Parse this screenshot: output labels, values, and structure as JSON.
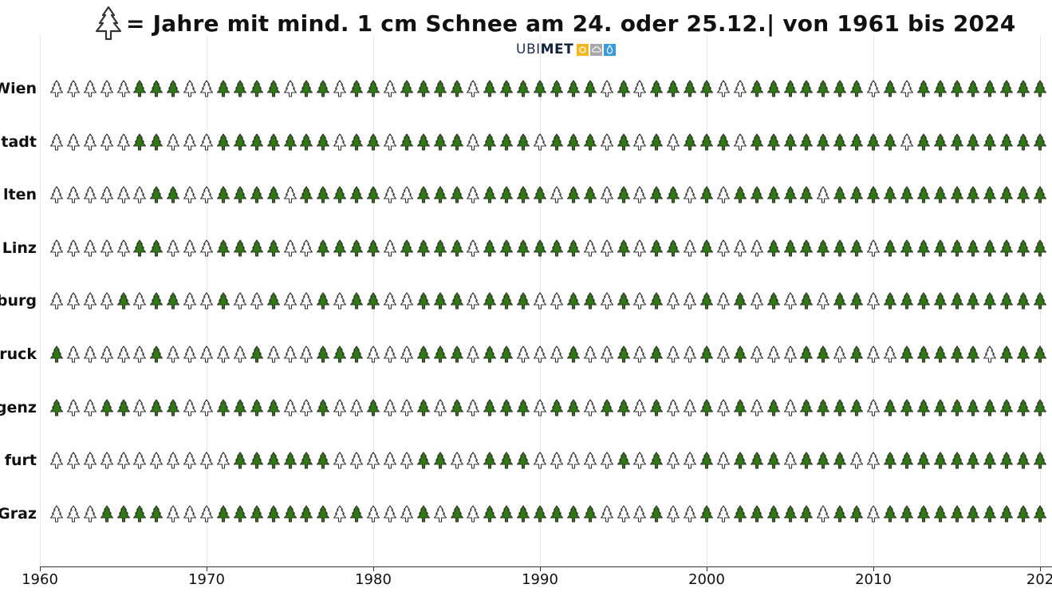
{
  "chart_data": {
    "type": "icon-grid",
    "title": "= Jahre mit mind. 1 cm Schnee am 24. oder 25.12.| von 1961 bis 2024",
    "legend": {
      "icon": "tree-outline-icon",
      "meaning": "Jahre mit mind. 1 cm Schnee am 24. oder 25.12."
    },
    "note": "F = filled green tree (white Christmas), O = outline tree; visible range 1961-2020 (image cropped right)",
    "xlabel": "",
    "ylabel": "",
    "xlim": [
      1960,
      2020
    ],
    "x_ticks": [
      "1960",
      "1970",
      "1980",
      "1990",
      "2000",
      "2010",
      "202"
    ],
    "x_tick_values": [
      1960,
      1970,
      1980,
      1990,
      2000,
      2010,
      2020
    ],
    "grid": "vertical",
    "years_start": 1961,
    "years_end_visible": 2020,
    "rows": [
      {
        "label": "Wien",
        "pattern": "OOOOOFFFOOFFFFOFFOFFOFFFFOFFFFFFFOFOFFFFOOFFFFFFFOFOFFFFFFFF"
      },
      {
        "label": "tadt",
        "pattern": "OOOOOFFOOOFFFFFFFOFFOFFFFOFFFOFFFOFOFOFFFOFFFFFFFFFOFFFFFFFF"
      },
      {
        "label": "lten",
        "pattern": "OOOOOOFFOOFFFFOFFFFFOOFFFOFFFFOFFOFOFFOFOFFFFFOFFFFFFFFFFFFF"
      },
      {
        "label": "Linz",
        "pattern": "OOOOOFFOOOFFFFOOFFFFOFFFFOFFFFFFOOFOFFOFOOOFFFFFFOFFFFFFFFFF"
      },
      {
        "label": "burg",
        "pattern": "OOOOFOFFOOFOOFOOFOFFOOFFFOFFFOOFFOFOFOOFOFOFOFOFFOFFFFFFFFFF"
      },
      {
        "label": "ruck",
        "pattern": "FOOOOOFOOOOOFOOOFFFOOOFFFOFFOOOFOOFOFOOFOFOOOFFOFOOFFFFFOFFF"
      },
      {
        "label": "genz",
        "pattern": "FOOFFOFFOOFFFFOOFOOFOOFOFOFFFOFFOFFOFOOFOFOFOFFFFOFFFFFFFFFF"
      },
      {
        "label": "furt",
        "pattern": "OOOOOOOOOOOFFFFFFOOOOOFFOOFFFOOOOOFOFOOFOFFFOFFFOOFFFFFFFFFF"
      },
      {
        "label": "Graz",
        "pattern": "OOOFFFFOOOFFFFFFFOFOOOFOFOFFFFFFFOOOFOOFOFFFFFOFFOFFFFFFFFFF"
      }
    ],
    "colors": {
      "filled": "#2e7a10",
      "outline_fill": "#ffffff",
      "stroke": "#333333"
    }
  },
  "title": {
    "text": "= Jahre mit mind. 1 cm Schnee am 24. oder 25.12.| von 1961 bis 2024",
    "icon": "tree-outline-icon"
  },
  "logo": {
    "text_a": "UBI",
    "text_b": "MET",
    "boxes": [
      {
        "icon": "sun-icon",
        "color": "#f5b820"
      },
      {
        "icon": "cloud-icon",
        "color": "#a8a8a8"
      },
      {
        "icon": "drop-icon",
        "color": "#3a9ad9"
      }
    ]
  }
}
